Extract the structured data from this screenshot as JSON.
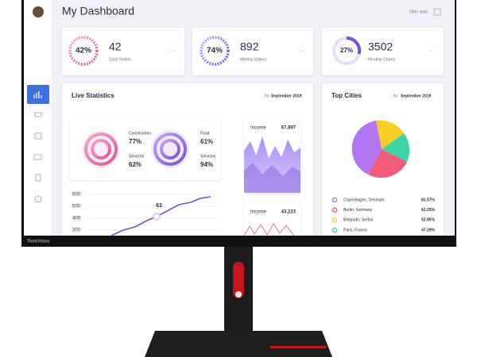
{
  "header": {
    "title": "My Dashboard",
    "filter": "Filter stats"
  },
  "brand": "ThinkVision",
  "stats": [
    {
      "percent": "42%",
      "value": "42",
      "label": "Daily Orders"
    },
    {
      "percent": "74%",
      "value": "892",
      "label": "Weekly Orders"
    },
    {
      "percent": "27%",
      "value": "3502",
      "label": "Monthly Orders"
    }
  ],
  "live": {
    "title": "Live Statistics",
    "period_prefix": "for",
    "period": "September 2019",
    "rings": [
      {
        "label": "Construction",
        "value": "77%"
      },
      {
        "label": "Services",
        "value": "62%"
      },
      {
        "label": "Food",
        "value": "61%"
      },
      {
        "label": "Services",
        "value": "94%"
      }
    ],
    "yticks": [
      600,
      500,
      400,
      300
    ],
    "point_label": "63",
    "income": [
      {
        "label": "Income",
        "value": "67,897"
      },
      {
        "label": "Income",
        "value": "43,223"
      }
    ]
  },
  "cities": {
    "title": "Top Cities",
    "period_prefix": "for",
    "period": "September 2019",
    "rows": [
      {
        "name": "Copenhagen, Denmark",
        "value": "81.57%"
      },
      {
        "name": "Berlin, Germany",
        "value": "63.25%"
      },
      {
        "name": "Belgrade, Serbia",
        "value": "52.95%"
      },
      {
        "name": "Paris, France",
        "value": "47.29%"
      }
    ]
  }
}
